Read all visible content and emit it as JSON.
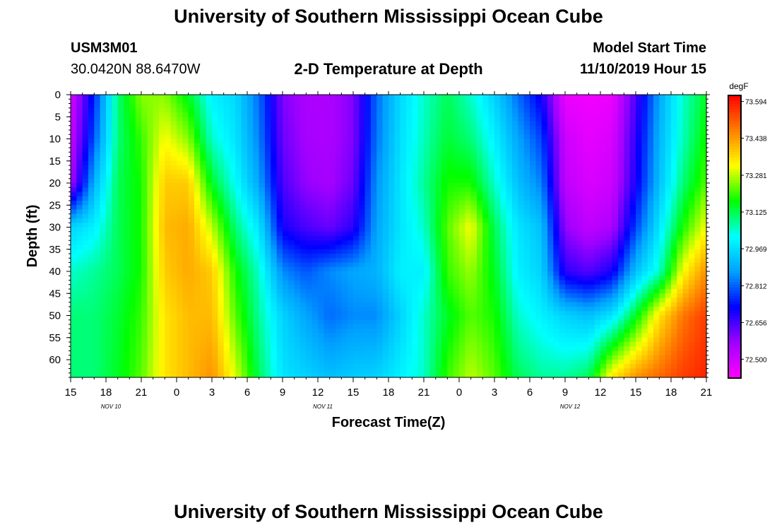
{
  "page": {
    "title": "University of Southern Mississippi Ocean Cube",
    "station_id": "USM3M01",
    "coordinates": "30.0420N 88.6470W",
    "subtitle": "2-D Temperature at Depth",
    "model_start_label": "Model Start Time",
    "model_start_value": "11/10/2019 Hour 15",
    "footer_title": "University of Southern Mississippi Ocean Cube"
  },
  "chart_data": {
    "type": "heatmap",
    "title": "2-D Temperature at Depth",
    "xlabel": "Forecast Time(Z)",
    "ylabel": "Depth (ft)",
    "x_tick_labels": [
      "15",
      "18",
      "21",
      "0",
      "3",
      "6",
      "9",
      "12",
      "15",
      "18",
      "21",
      "0",
      "3",
      "6",
      "9",
      "12",
      "15",
      "18",
      "21"
    ],
    "x_date_labels": [
      {
        "label": "NOV 10",
        "tick_index": 1
      },
      {
        "label": "NOV 11",
        "tick_index": 7
      },
      {
        "label": "NOV 12",
        "tick_index": 14
      }
    ],
    "y_ticks": [
      0,
      5,
      10,
      15,
      20,
      25,
      30,
      35,
      40,
      45,
      50,
      55,
      60
    ],
    "ylim": [
      0,
      64
    ],
    "y_inverted": true,
    "x_range_hours": [
      0,
      54
    ],
    "colorbar": {
      "unit": "degF",
      "tick_labels": [
        "73.594",
        "73.438",
        "73.281",
        "73.125",
        "72.969",
        "72.812",
        "72.656",
        "72.500"
      ],
      "vmin": 72.42,
      "vmax": 73.62,
      "colors": [
        "#ff00ff",
        "#a000ff",
        "#0000ff",
        "#00a0ff",
        "#00ffff",
        "#00ff00",
        "#ffff00",
        "#ff8000",
        "#ff0000"
      ]
    },
    "depths": [
      0,
      10,
      20,
      30,
      40,
      50,
      64
    ],
    "profiles": [
      {
        "h": 0,
        "t": [
          72.48,
          72.5,
          72.55,
          72.95,
          73.05,
          73.1,
          73.1
        ]
      },
      {
        "h": 2,
        "t": [
          72.75,
          72.8,
          72.9,
          73.0,
          73.08,
          73.1,
          73.1
        ]
      },
      {
        "h": 4,
        "t": [
          73.1,
          73.1,
          73.12,
          73.12,
          73.12,
          73.14,
          73.15
        ]
      },
      {
        "h": 6,
        "t": [
          73.25,
          73.2,
          73.18,
          73.18,
          73.18,
          73.2,
          73.22
        ]
      },
      {
        "h": 8,
        "t": [
          73.25,
          73.32,
          73.38,
          73.4,
          73.38,
          73.35,
          73.35
        ]
      },
      {
        "h": 10,
        "t": [
          73.15,
          73.25,
          73.38,
          73.42,
          73.42,
          73.4,
          73.4
        ]
      },
      {
        "h": 12,
        "t": [
          73.0,
          73.05,
          73.15,
          73.28,
          73.38,
          73.4,
          73.45
        ]
      },
      {
        "h": 14,
        "t": [
          72.96,
          72.98,
          73.02,
          73.1,
          73.18,
          73.22,
          73.3
        ]
      },
      {
        "h": 16,
        "t": [
          72.82,
          72.84,
          72.88,
          72.98,
          73.05,
          73.08,
          73.12
        ]
      },
      {
        "h": 18,
        "t": [
          72.6,
          72.62,
          72.65,
          72.7,
          72.85,
          72.95,
          72.98
        ]
      },
      {
        "h": 20,
        "t": [
          72.55,
          72.56,
          72.58,
          72.65,
          72.8,
          72.88,
          72.95
        ]
      },
      {
        "h": 22,
        "t": [
          72.55,
          72.55,
          72.56,
          72.62,
          72.85,
          72.82,
          72.92
        ]
      },
      {
        "h": 24,
        "t": [
          72.6,
          72.6,
          72.62,
          72.68,
          72.88,
          72.85,
          72.94
        ]
      },
      {
        "h": 26,
        "t": [
          72.82,
          72.83,
          72.86,
          72.88,
          72.9,
          72.85,
          72.95
        ]
      },
      {
        "h": 28,
        "t": [
          72.96,
          72.97,
          72.98,
          72.98,
          73.0,
          72.95,
          73.0
        ]
      },
      {
        "h": 30,
        "t": [
          73.05,
          73.06,
          73.08,
          73.05,
          73.0,
          73.05,
          73.05
        ]
      },
      {
        "h": 32,
        "t": [
          73.12,
          73.14,
          73.18,
          73.22,
          73.2,
          73.15,
          73.2
        ]
      },
      {
        "h": 34,
        "t": [
          73.05,
          73.1,
          73.18,
          73.32,
          73.26,
          73.22,
          73.28
        ]
      },
      {
        "h": 36,
        "t": [
          72.95,
          73.0,
          73.05,
          73.12,
          73.15,
          73.18,
          73.22
        ]
      },
      {
        "h": 38,
        "t": [
          72.82,
          72.88,
          72.92,
          72.98,
          73.0,
          73.05,
          73.12
        ]
      },
      {
        "h": 40,
        "t": [
          72.7,
          72.78,
          72.84,
          72.92,
          72.95,
          73.0,
          73.08
        ]
      },
      {
        "h": 42,
        "t": [
          72.45,
          72.5,
          72.52,
          72.58,
          72.68,
          72.95,
          73.08
        ]
      },
      {
        "h": 44,
        "t": [
          72.44,
          72.46,
          72.48,
          72.52,
          72.64,
          72.92,
          73.12
        ]
      },
      {
        "h": 46,
        "t": [
          72.45,
          72.48,
          72.5,
          72.55,
          72.7,
          72.98,
          73.35
        ]
      },
      {
        "h": 48,
        "t": [
          72.65,
          72.68,
          72.7,
          72.78,
          72.92,
          73.15,
          73.45
        ]
      },
      {
        "h": 50,
        "t": [
          72.88,
          72.9,
          72.92,
          72.98,
          73.05,
          73.35,
          73.5
        ]
      },
      {
        "h": 52,
        "t": [
          73.05,
          73.06,
          73.1,
          73.18,
          73.32,
          73.48,
          73.55
        ]
      },
      {
        "h": 54,
        "t": [
          73.15,
          73.18,
          73.22,
          73.32,
          73.45,
          73.55,
          73.58
        ]
      }
    ]
  }
}
